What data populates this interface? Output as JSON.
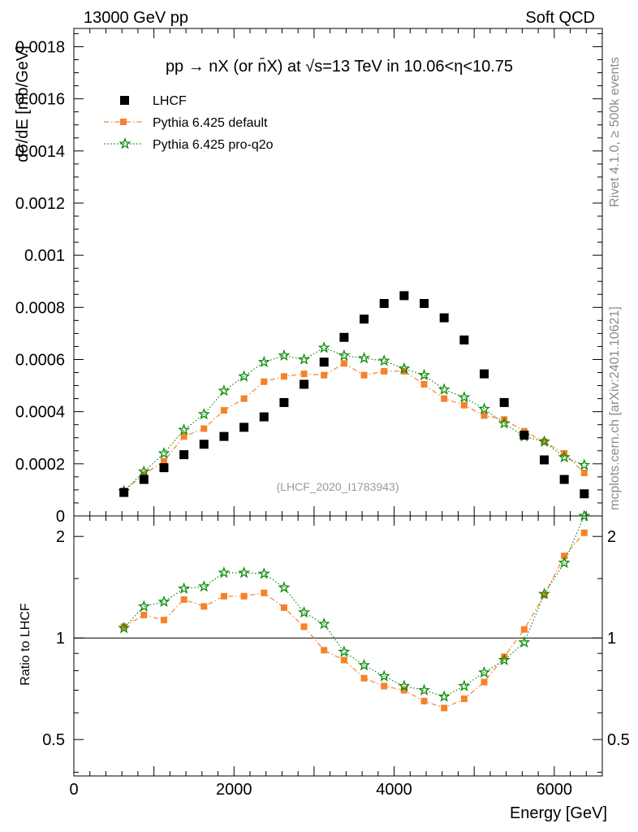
{
  "header": {
    "left": "13000 GeV pp",
    "right": "Soft QCD"
  },
  "side_text": {
    "rivet": "Rivet 4.1.0, ≥ 500k events",
    "mcplots": "mcplots.cern.ch [arXiv:2401.10621]"
  },
  "watermark": "(LHCF_2020_I1783943)",
  "chart_data": [
    {
      "type": "scatter",
      "panel": "main",
      "title": "pp → nX (or n̄X) at √s=13 TeV in 10.06<η<10.75",
      "xlabel": "Energy [GeV]",
      "ylabel": "dσ/dE [mb/GeV]",
      "xlim": [
        0,
        6600
      ],
      "ylim": [
        0,
        0.00187
      ],
      "yticks": [
        0,
        0.0002,
        0.0004,
        0.0006,
        0.0008,
        0.001,
        0.0012,
        0.0014,
        0.0016,
        0.0018
      ],
      "ytick_labels": [
        "0",
        "0.0002",
        "0.0004",
        "0.0006",
        "0.0008",
        "0.001",
        "0.0012",
        "0.0014",
        "0.0016",
        "0.0018"
      ],
      "legend_position": "top-left",
      "x": [
        625,
        875,
        1125,
        1375,
        1625,
        1875,
        2125,
        2375,
        2625,
        2875,
        3125,
        3375,
        3625,
        3875,
        4125,
        4375,
        4625,
        4875,
        5125,
        5375,
        5625,
        5875,
        6125,
        6375
      ],
      "series": [
        {
          "name": "LHCF",
          "color": "#000000",
          "marker": "square",
          "values": [
            9e-05,
            0.00014,
            0.000185,
            0.000235,
            0.000275,
            0.000305,
            0.00034,
            0.00038,
            0.000435,
            0.000505,
            0.00059,
            0.000685,
            0.000755,
            0.000815,
            0.000845,
            0.000815,
            0.00076,
            0.000675,
            0.000545,
            0.000435,
            0.00031,
            0.000215,
            0.00014,
            8.5e-05
          ]
        },
        {
          "name": "Pythia 6.425 default",
          "color": "#f5822a",
          "marker": "filled-square",
          "line": "dashdot",
          "values": [
            9.5e-05,
            0.00016,
            0.00021,
            0.000305,
            0.000335,
            0.000405,
            0.00045,
            0.000515,
            0.000535,
            0.000545,
            0.00054,
            0.000585,
            0.00054,
            0.000555,
            0.000555,
            0.000505,
            0.00045,
            0.000425,
            0.000385,
            0.00037,
            0.000325,
            0.000285,
            0.00024,
            0.000165
          ]
        },
        {
          "name": "Pythia 6.425 pro-q2o",
          "color": "#0a8a0a",
          "marker": "star",
          "line": "dotted",
          "values": [
            9.5e-05,
            0.00017,
            0.00024,
            0.00033,
            0.00039,
            0.00048,
            0.000535,
            0.00059,
            0.000615,
            0.0006,
            0.000645,
            0.000615,
            0.000605,
            0.000595,
            0.000565,
            0.00054,
            0.000485,
            0.000455,
            0.00041,
            0.000355,
            0.000305,
            0.000285,
            0.000225,
            0.000195
          ]
        }
      ]
    },
    {
      "type": "line",
      "panel": "ratio",
      "xlabel": "Energy [GeV]",
      "ylabel": "Ratio to LHCF",
      "xlim": [
        0,
        6600
      ],
      "ylim": [
        0.39,
        2.3
      ],
      "log_y": true,
      "yticks": [
        0.5,
        1,
        2
      ],
      "ytick_labels": [
        "0.5",
        "1",
        "2"
      ],
      "xticks": [
        0,
        2000,
        4000,
        6000
      ],
      "xtick_labels": [
        "0",
        "2000",
        "4000",
        "6000"
      ],
      "reference_line": 1,
      "x": [
        625,
        875,
        1125,
        1375,
        1625,
        1875,
        2125,
        2375,
        2625,
        2875,
        3125,
        3375,
        3625,
        3875,
        4125,
        4375,
        4625,
        4875,
        5125,
        5375,
        5625,
        5875,
        6125,
        6375
      ],
      "series": [
        {
          "name": "Pythia 6.425 default",
          "color": "#f5822a",
          "marker": "filled-square",
          "line": "dashdot",
          "values": [
            1.08,
            1.17,
            1.13,
            1.3,
            1.24,
            1.33,
            1.33,
            1.36,
            1.23,
            1.08,
            0.92,
            0.86,
            0.76,
            0.72,
            0.7,
            0.65,
            0.62,
            0.66,
            0.74,
            0.88,
            1.06,
            1.34,
            1.75,
            2.05
          ]
        },
        {
          "name": "Pythia 6.425 pro-q2o",
          "color": "#0a8a0a",
          "marker": "star",
          "line": "dotted",
          "values": [
            1.07,
            1.24,
            1.28,
            1.4,
            1.42,
            1.56,
            1.56,
            1.55,
            1.41,
            1.19,
            1.1,
            0.91,
            0.83,
            0.77,
            0.72,
            0.7,
            0.67,
            0.72,
            0.79,
            0.86,
            0.97,
            1.35,
            1.67,
            2.3
          ]
        }
      ]
    }
  ]
}
